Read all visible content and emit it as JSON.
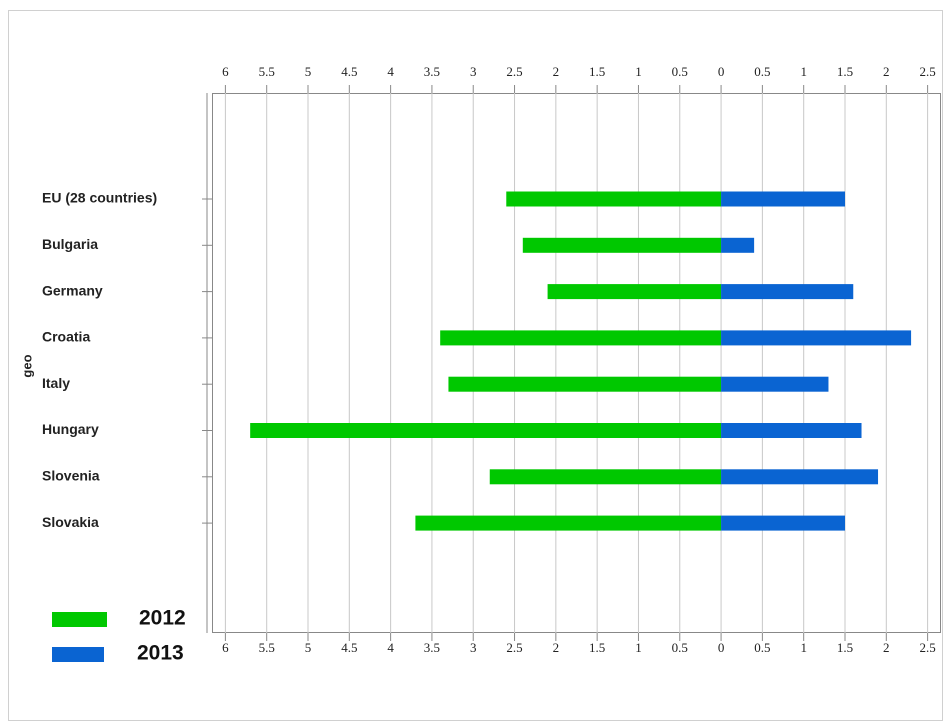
{
  "chart_data": {
    "type": "bar",
    "orientation": "horizontal",
    "ylabel": "geo",
    "categories": [
      "EU (28 countries)",
      "Bulgaria",
      "Germany",
      "Croatia",
      "Italy",
      "Hungary",
      "Slovenia",
      "Slovakia"
    ],
    "series": [
      {
        "name": "2012",
        "color": "#00c800",
        "values": [
          -2.6,
          -2.4,
          -2.1,
          -3.4,
          -3.3,
          -5.7,
          -2.8,
          -3.7
        ]
      },
      {
        "name": "2013",
        "color": "#0a64d2",
        "values": [
          1.5,
          0.4,
          1.6,
          2.3,
          1.3,
          1.7,
          1.9,
          1.5
        ]
      }
    ],
    "xlim": [
      -6.15,
      2.65
    ],
    "xticks": [
      {
        "value": -6,
        "label": "6"
      },
      {
        "value": -5.5,
        "label": "5.5"
      },
      {
        "value": -5,
        "label": "5"
      },
      {
        "value": -4.5,
        "label": "4.5"
      },
      {
        "value": -4,
        "label": "4"
      },
      {
        "value": -3.5,
        "label": "3.5"
      },
      {
        "value": -3,
        "label": "3"
      },
      {
        "value": -2.5,
        "label": "2.5"
      },
      {
        "value": -2,
        "label": "2"
      },
      {
        "value": -1.5,
        "label": "1.5"
      },
      {
        "value": -1,
        "label": "1"
      },
      {
        "value": -0.5,
        "label": "0.5"
      },
      0,
      0.5,
      1,
      1.5,
      2,
      2.5
    ],
    "grid": true,
    "legend": "bottom-left"
  }
}
